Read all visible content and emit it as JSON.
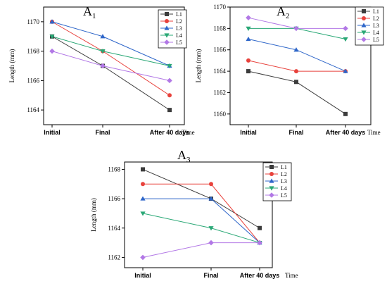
{
  "chart_data": [
    {
      "type": "line",
      "title": "A",
      "title_subscript": "1",
      "xlabel": "Time",
      "ylabel": "Length (mm)",
      "categories": [
        "Initial",
        "Final",
        "After 40 days"
      ],
      "ylim": [
        1163,
        1171
      ],
      "yticks": [
        1164,
        1166,
        1168,
        1170
      ],
      "legend_position": "top-right",
      "series": [
        {
          "name": "L1",
          "color": "#3c3c3c",
          "marker": "square",
          "values": [
            1169,
            1167,
            1164
          ]
        },
        {
          "name": "L2",
          "color": "#e8423c",
          "marker": "circle",
          "values": [
            1170,
            1168,
            1165
          ]
        },
        {
          "name": "L3",
          "color": "#2e66c9",
          "marker": "triangle-up",
          "values": [
            1170,
            1169,
            1167
          ]
        },
        {
          "name": "L4",
          "color": "#2aa876",
          "marker": "triangle-down",
          "values": [
            1169,
            1168,
            1167
          ]
        },
        {
          "name": "L5",
          "color": "#b278e6",
          "marker": "diamond",
          "values": [
            1168,
            1167,
            1166
          ]
        }
      ]
    },
    {
      "type": "line",
      "title": "A",
      "title_subscript": "2",
      "xlabel": "Time",
      "ylabel": "Length (mm)",
      "categories": [
        "Initial",
        "Final",
        "After 40 days"
      ],
      "ylim": [
        1159,
        1170
      ],
      "yticks": [
        1160,
        1162,
        1164,
        1166,
        1168,
        1170
      ],
      "legend_position": "top-right",
      "series": [
        {
          "name": "L1",
          "color": "#3c3c3c",
          "marker": "square",
          "values": [
            1164,
            1163,
            1160
          ]
        },
        {
          "name": "L2",
          "color": "#e8423c",
          "marker": "circle",
          "values": [
            1165,
            1164,
            1164
          ]
        },
        {
          "name": "L3",
          "color": "#2e66c9",
          "marker": "triangle-up",
          "values": [
            1167,
            1166,
            1164
          ]
        },
        {
          "name": "L4",
          "color": "#2aa876",
          "marker": "triangle-down",
          "values": [
            1168,
            1168,
            1167
          ]
        },
        {
          "name": "L5",
          "color": "#b278e6",
          "marker": "diamond",
          "values": [
            1169,
            1168,
            1168
          ]
        }
      ]
    },
    {
      "type": "line",
      "title": "A",
      "title_subscript": "3",
      "xlabel": "Time",
      "ylabel": "Length (mm)",
      "categories": [
        "Initial",
        "Final",
        "After 40 days"
      ],
      "ylim": [
        1161.3,
        1168.5
      ],
      "yticks": [
        1162,
        1164,
        1166,
        1168
      ],
      "legend_position": "top-right",
      "series": [
        {
          "name": "L1",
          "color": "#3c3c3c",
          "marker": "square",
          "values": [
            1168,
            1166,
            1164
          ]
        },
        {
          "name": "L2",
          "color": "#e8423c",
          "marker": "circle",
          "values": [
            1167,
            1167,
            1163
          ]
        },
        {
          "name": "L3",
          "color": "#2e66c9",
          "marker": "triangle-up",
          "values": [
            1166,
            1166,
            1163
          ]
        },
        {
          "name": "L4",
          "color": "#2aa876",
          "marker": "triangle-down",
          "values": [
            1165,
            1164,
            1163
          ]
        },
        {
          "name": "L5",
          "color": "#b278e6",
          "marker": "diamond",
          "values": [
            1162,
            1163,
            1163
          ]
        }
      ]
    }
  ]
}
